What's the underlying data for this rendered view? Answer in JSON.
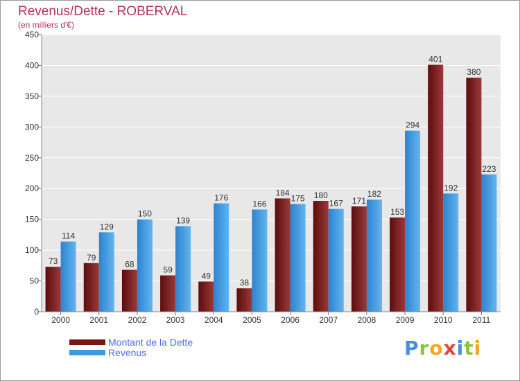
{
  "chart_data": {
    "type": "bar",
    "title": "Revenus/Dette - ROBERVAL",
    "subtitle": "(en milliers d'€)",
    "categories": [
      "2000",
      "2001",
      "2002",
      "2003",
      "2004",
      "2005",
      "2006",
      "2007",
      "2008",
      "2009",
      "2010",
      "2011"
    ],
    "series": [
      {
        "name": "Montant de la Dette",
        "color": "#7a1515",
        "values": [
          73,
          79,
          68,
          59,
          49,
          38,
          184,
          180,
          171,
          153,
          401,
          380
        ]
      },
      {
        "name": "Revenus",
        "color": "#3d9be3",
        "values": [
          114,
          129,
          150,
          139,
          176,
          166,
          175,
          167,
          182,
          294,
          192,
          223
        ]
      }
    ],
    "ylim": [
      0,
      450
    ],
    "yticks": [
      0,
      50,
      100,
      150,
      200,
      250,
      300,
      350,
      400,
      450
    ],
    "grid": true,
    "legend": "bottom-left"
  },
  "logo": {
    "letters": [
      "P",
      "r",
      "o",
      "x",
      "i",
      "t",
      "i"
    ],
    "colors": [
      "#4a90d9",
      "#8ac43f",
      "#f5a623",
      "#e2453c",
      "#4a90d9",
      "#8ac43f",
      "#f5a623"
    ]
  }
}
